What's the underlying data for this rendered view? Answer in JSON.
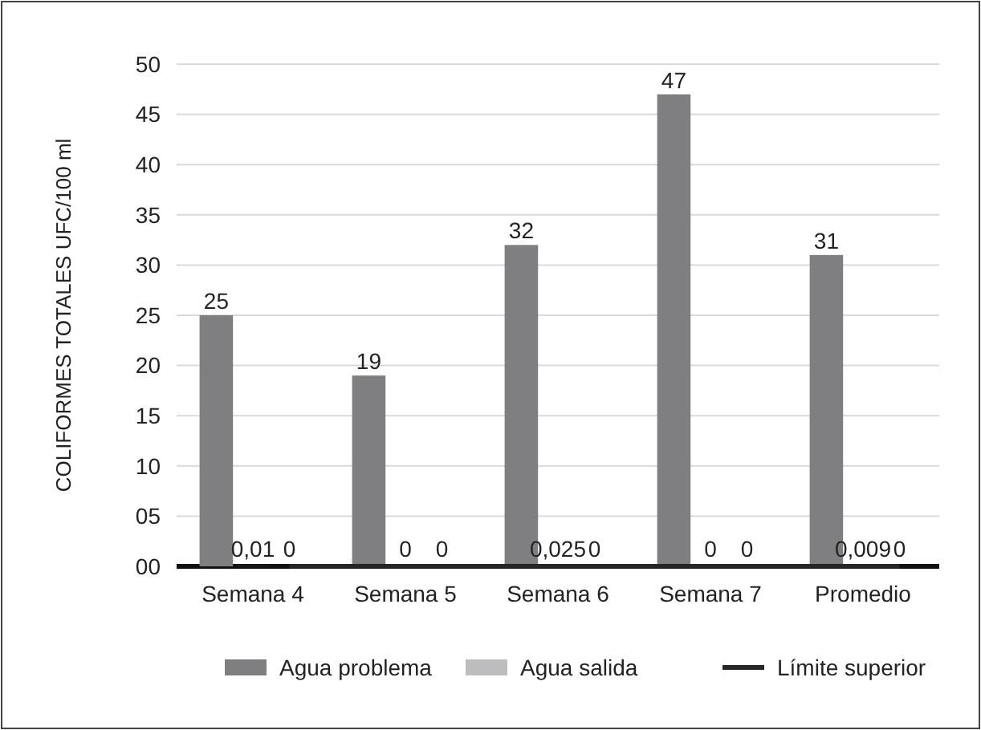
{
  "chart_data": {
    "type": "bar",
    "ylabel": "COLIFORMES TOTALES UFC/100 ml",
    "categories": [
      "Semana 4",
      "Semana 5",
      "Semana 6",
      "Semana 7",
      "Promedio"
    ],
    "series": [
      {
        "name": "Agua problema",
        "color": "#7f7f81",
        "values": [
          25,
          19,
          32,
          47,
          31
        ],
        "value_labels": [
          "25",
          "19",
          "32",
          "47",
          "31"
        ]
      },
      {
        "name": "Agua salida",
        "color": "#bdbdbf",
        "values": [
          0.01,
          0,
          0.025,
          0,
          0.009
        ],
        "value_labels": [
          "0,01",
          "0",
          "0,025",
          "0",
          "0,009"
        ]
      },
      {
        "name": "Límite superior",
        "type": "line",
        "marker": "none",
        "color": "#262626",
        "values": [
          0,
          0,
          0,
          0,
          0
        ],
        "value_labels": [
          "0",
          "0",
          "0",
          "0",
          "0"
        ]
      }
    ],
    "ylim": [
      0,
      50
    ],
    "yticks": [
      {
        "value": 0,
        "label": "00"
      },
      {
        "value": 5,
        "label": "05"
      },
      10,
      15,
      20,
      25,
      30,
      35,
      40,
      45,
      50
    ],
    "grid": "y",
    "legend": "bottom"
  }
}
